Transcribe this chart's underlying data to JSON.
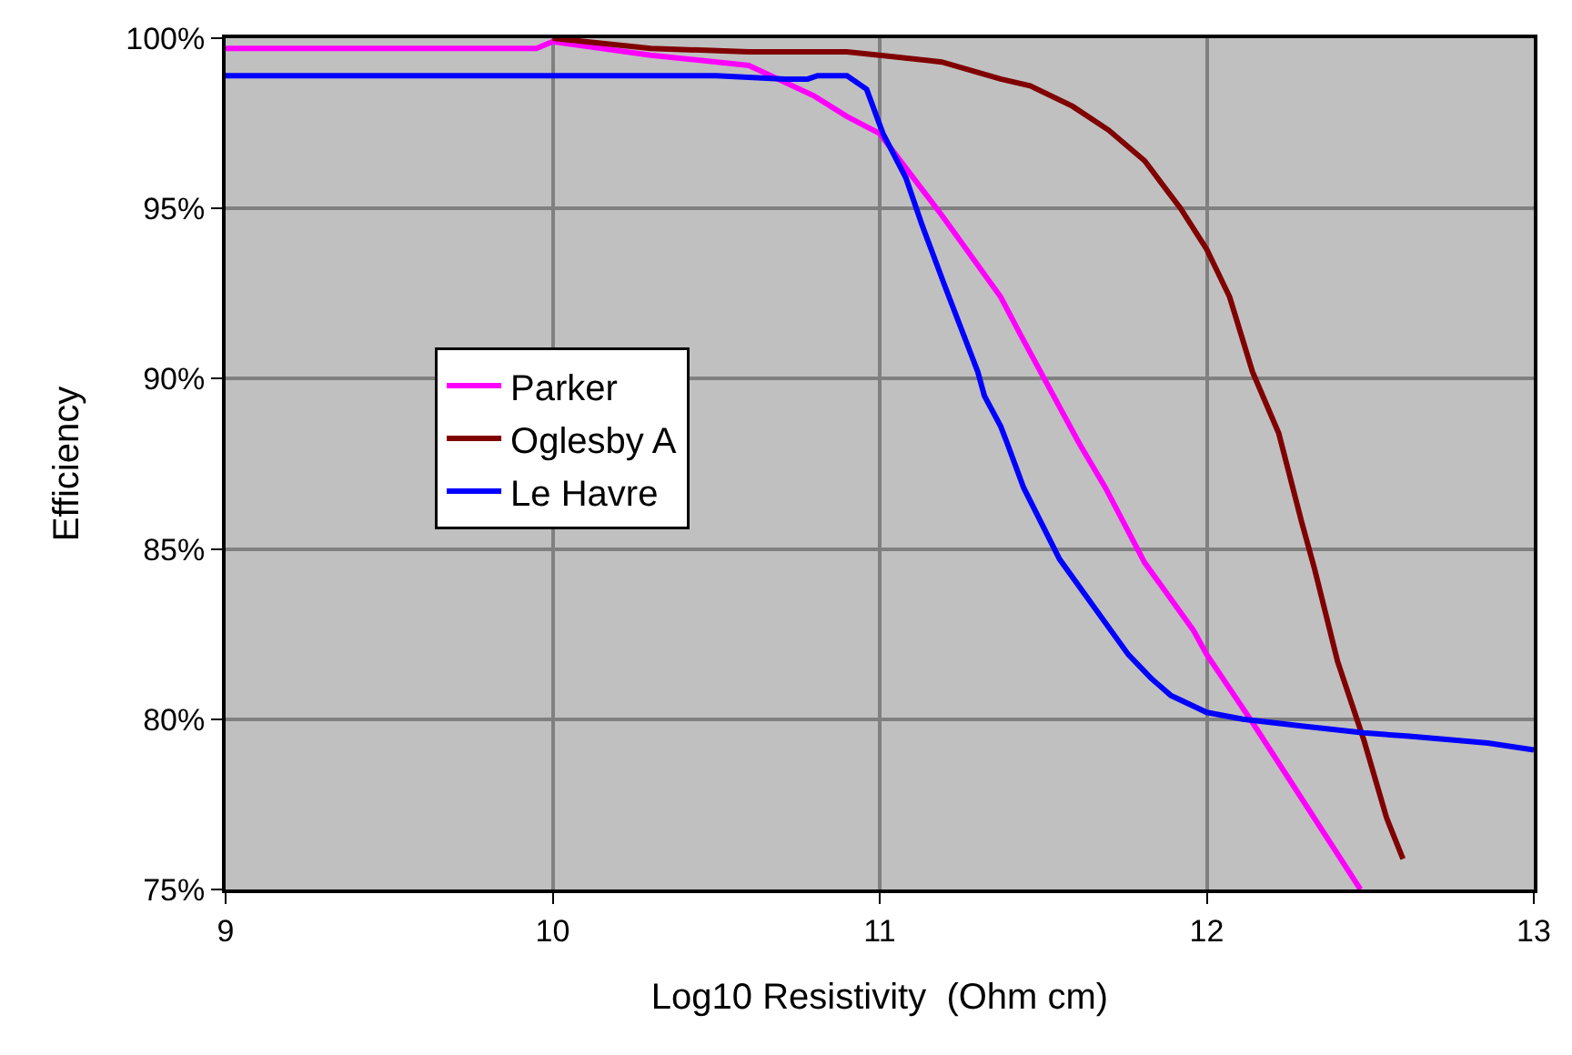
{
  "chart_data": {
    "type": "line",
    "xlabel": "Log10 Resistivity  (Ohm cm)",
    "ylabel": "Efficiency",
    "xlim": [
      9,
      13
    ],
    "xticks": [
      9,
      10,
      11,
      12,
      13
    ],
    "ylim": [
      75,
      100
    ],
    "yticks": [
      {
        "value": 75,
        "label": "75%"
      },
      {
        "value": 80,
        "label": "80%"
      },
      {
        "value": 85,
        "label": "85%"
      },
      {
        "value": 90,
        "label": "90%"
      },
      {
        "value": 95,
        "label": "95%"
      },
      {
        "value": 100,
        "label": "100%"
      }
    ],
    "grid": true,
    "legend": "left",
    "marker": "none",
    "line_style": "solid",
    "series": [
      {
        "name": "Parker",
        "color": "#ff00ff",
        "x": [
          9,
          9.5,
          9.95,
          10,
          10.3,
          10.6,
          10.8,
          10.9,
          11.0,
          11.19,
          11.37,
          11.43,
          11.61,
          11.69,
          11.81,
          11.96,
          12.0,
          12.14,
          12.47
        ],
        "values": [
          99.7,
          99.7,
          99.7,
          99.9,
          99.5,
          99.2,
          98.3,
          97.7,
          97.2,
          94.8,
          92.4,
          91.3,
          88.1,
          86.8,
          84.6,
          82.6,
          81.9,
          79.9,
          75.0
        ]
      },
      {
        "name": "Oglesby A",
        "color": "#800000",
        "x": [
          10.0,
          10.3,
          10.6,
          10.9,
          11.0,
          11.19,
          11.37,
          11.46,
          11.59,
          11.7,
          11.81,
          11.92,
          12.0,
          12.07,
          12.14,
          12.22,
          12.29,
          12.33,
          12.4,
          12.48,
          12.55,
          12.6
        ],
        "values": [
          100,
          99.7,
          99.6,
          99.6,
          99.5,
          99.3,
          98.8,
          98.6,
          98.0,
          97.3,
          96.4,
          95.0,
          93.8,
          92.4,
          90.2,
          88.4,
          85.8,
          84.4,
          81.7,
          79.4,
          77.1,
          75.9
        ]
      },
      {
        "name": "Le Havre",
        "color": "#0000ff",
        "x": [
          9,
          9.5,
          10,
          10.5,
          10.71,
          10.78,
          10.81,
          10.9,
          10.96,
          11.01,
          11.08,
          11.13,
          11.2,
          11.3,
          11.32,
          11.37,
          11.39,
          11.44,
          11.55,
          11.67,
          11.76,
          11.83,
          11.89,
          12.0,
          12.11,
          12.29,
          12.48,
          12.62,
          12.86,
          13.0
        ],
        "values": [
          98.9,
          98.9,
          98.9,
          98.9,
          98.8,
          98.8,
          98.9,
          98.9,
          98.5,
          97.2,
          95.9,
          94.5,
          92.7,
          90.2,
          89.5,
          88.6,
          88.1,
          86.8,
          84.7,
          83.1,
          81.9,
          81.2,
          80.7,
          80.2,
          80.0,
          79.8,
          79.6,
          79.5,
          79.3,
          79.1
        ]
      }
    ]
  }
}
